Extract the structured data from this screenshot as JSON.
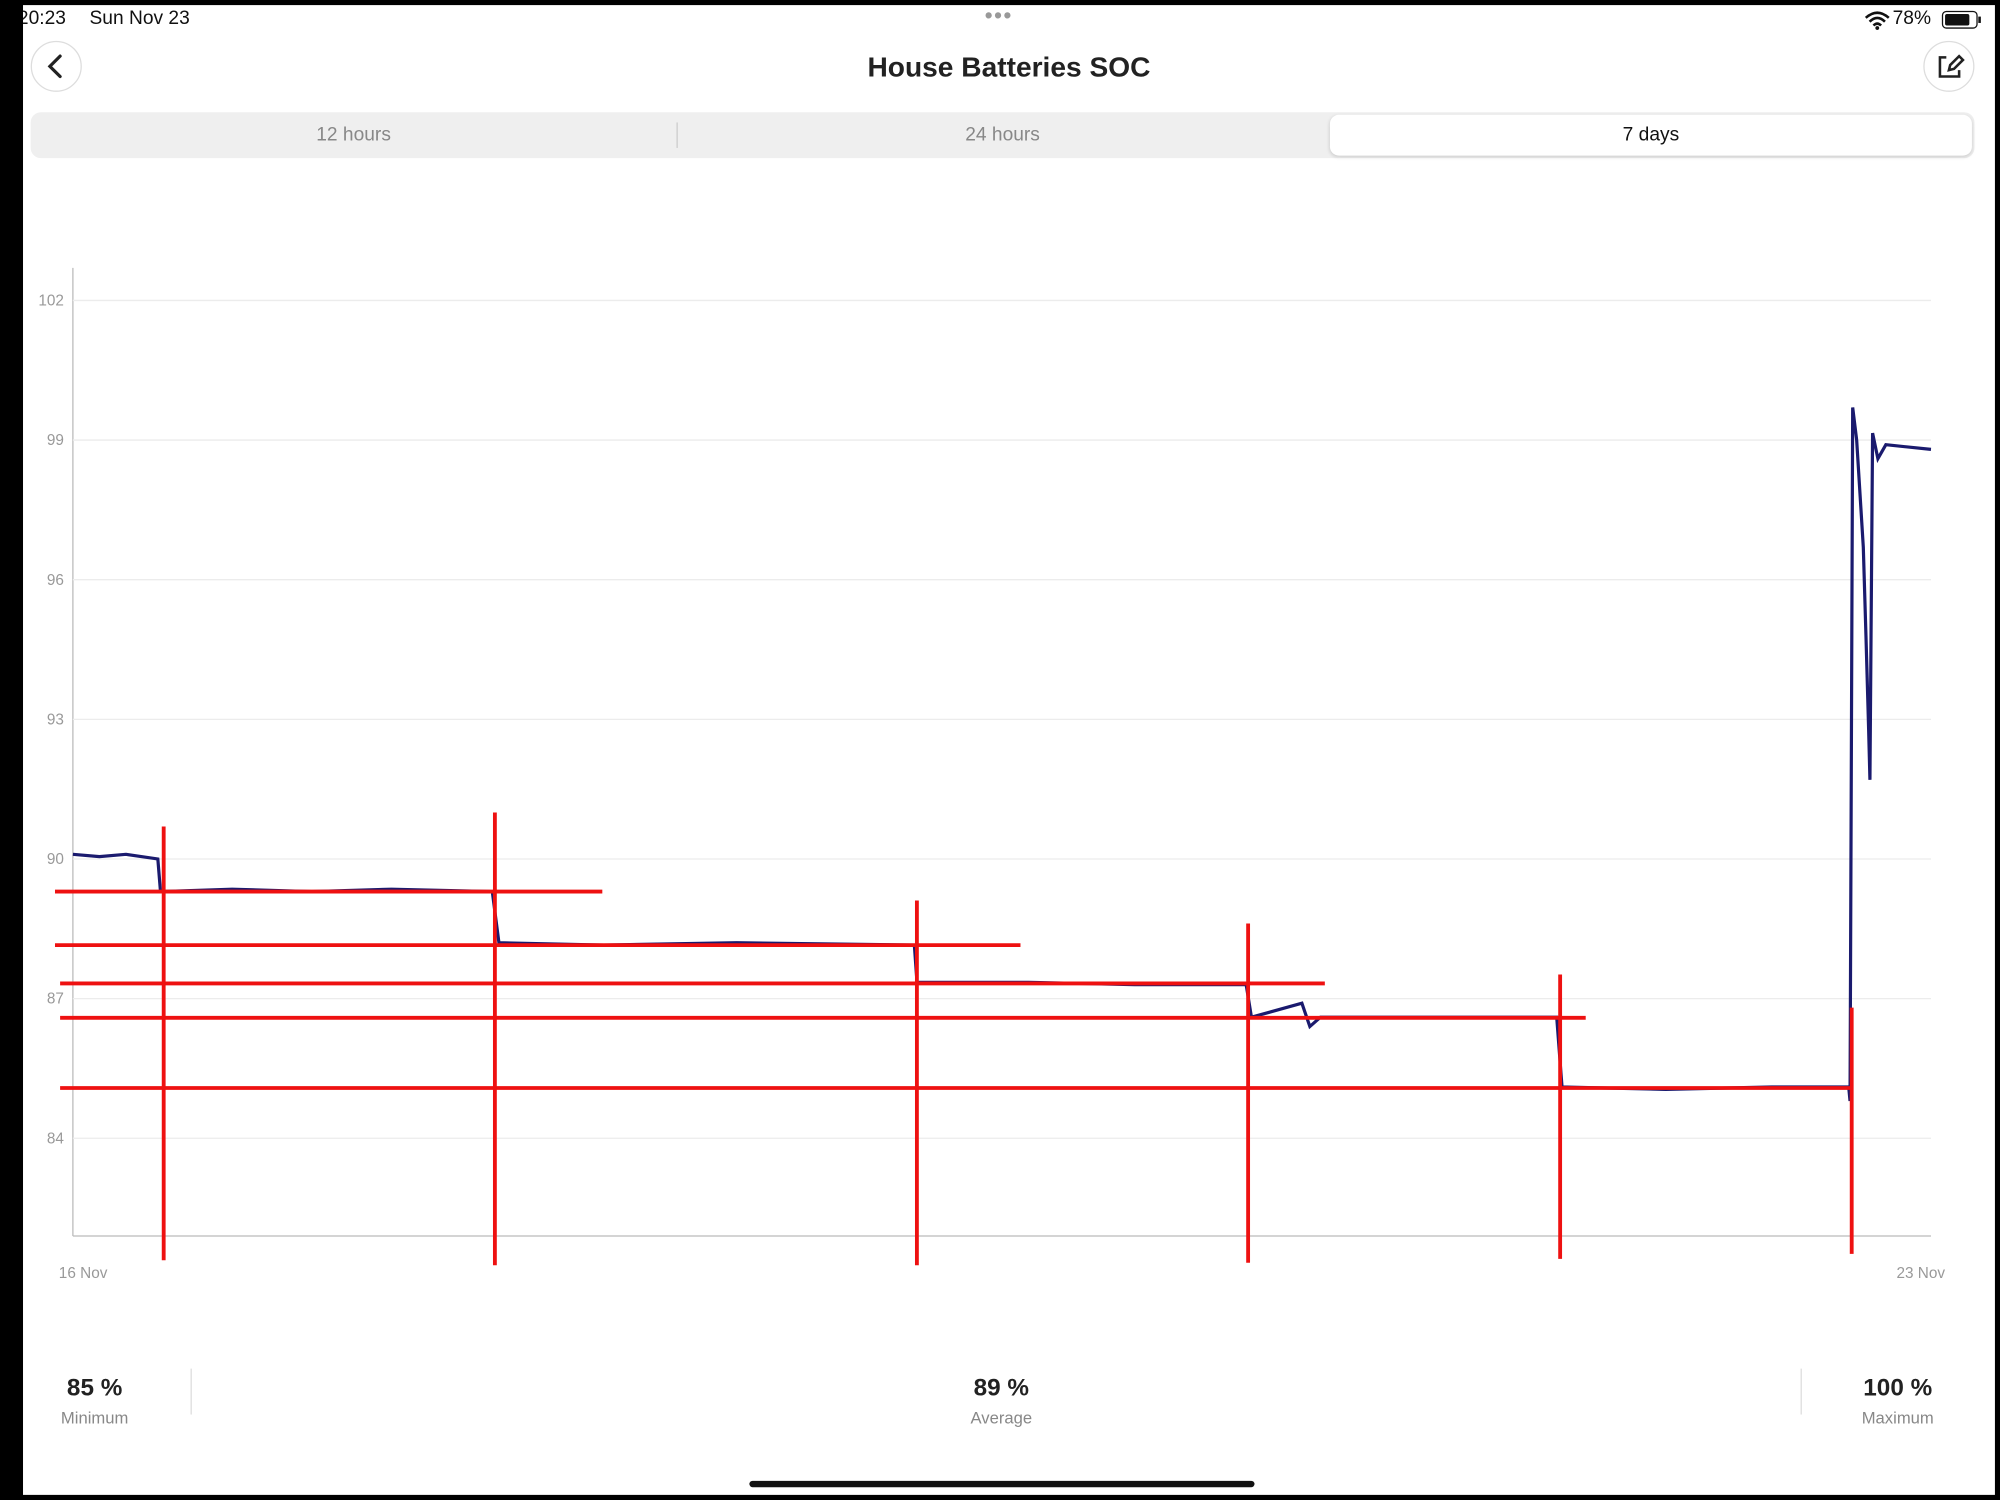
{
  "status_bar": {
    "time": "20:23",
    "date": "Sun Nov 23",
    "battery": "78%"
  },
  "header": {
    "title": "House Batteries SOC"
  },
  "tabs": [
    "12 hours",
    "24 hours",
    "7 days"
  ],
  "chart_data": {
    "type": "line",
    "x": [
      0,
      0.1,
      0.2,
      0.32,
      0.33,
      0.6,
      0.9,
      1.2,
      1.58,
      1.605,
      2.0,
      2.5,
      3.17,
      3.18,
      3.6,
      4.0,
      4.42,
      4.44,
      4.63,
      4.66,
      4.7,
      5.2,
      5.59,
      5.61,
      6.0,
      6.4,
      6.69,
      6.695,
      6.705,
      6.72,
      6.745,
      6.755,
      6.765,
      6.77,
      6.78,
      6.8,
      6.83,
      7.0
    ],
    "series": [
      {
        "color": "#1a1a6e",
        "values": [
          90.1,
          90.05,
          90.1,
          90.0,
          89.3,
          89.35,
          89.3,
          89.35,
          89.3,
          88.2,
          88.15,
          88.2,
          88.15,
          87.35,
          87.35,
          87.3,
          87.3,
          86.6,
          86.9,
          86.4,
          86.6,
          86.6,
          86.6,
          85.1,
          85.05,
          85.1,
          85.1,
          84.8,
          99.7,
          99.0,
          96.7,
          94.8,
          92.8,
          91.7,
          99.15,
          98.6,
          98.9,
          98.8
        ]
      }
    ],
    "xlim": [
      0,
      7
    ],
    "xticks": [
      {
        "value": 0,
        "label": "16 Nov"
      },
      {
        "value": 7,
        "label": "23 Nov"
      }
    ],
    "ylim": [
      81.9,
      102.7
    ],
    "yticks": [
      84,
      87,
      90,
      93,
      96,
      99,
      102
    ],
    "grid": true
  },
  "stats": [
    {
      "value": "85 %",
      "label": "Minimum"
    },
    {
      "value": "89 %",
      "label": "Average"
    },
    {
      "value": "100 %",
      "label": "Maximum"
    }
  ]
}
